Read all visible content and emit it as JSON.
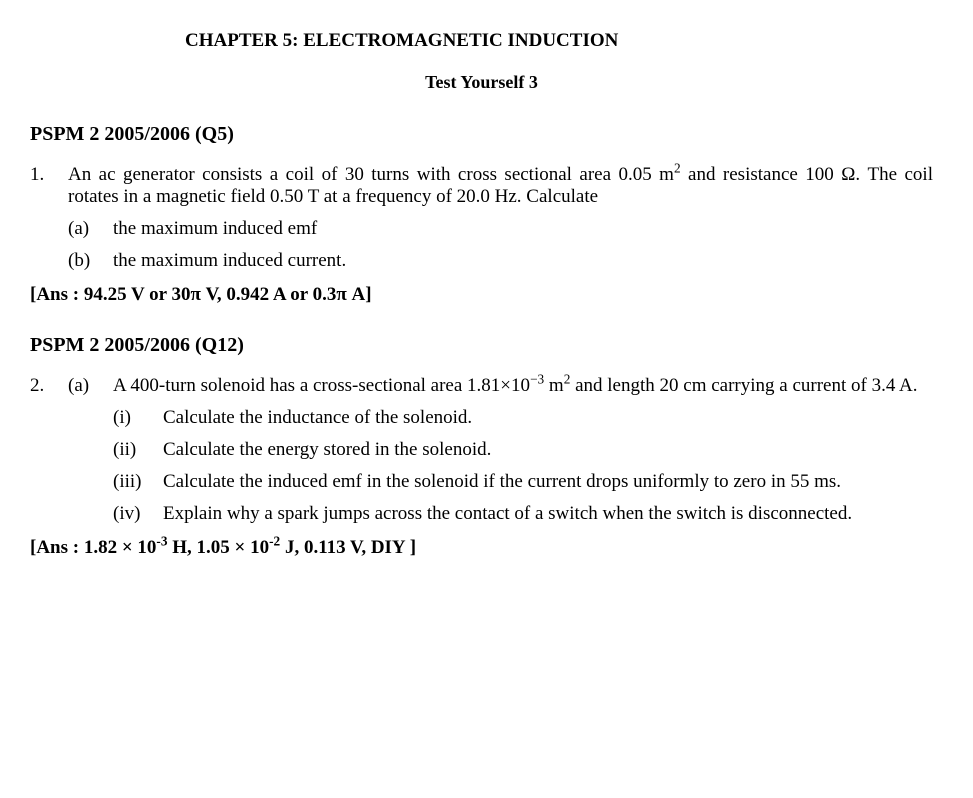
{
  "header": {
    "chapter": "CHAPTER 5: ELECTROMAGNETIC INDUCTION",
    "subtitle": "Test Yourself 3"
  },
  "sections": [
    {
      "ref": "PSPM 2 2005/2006 (Q5)",
      "num": "1.",
      "intro_html": "An ac generator consists a coil of 30 turns with cross sectional area 0.05 m<sup>2</sup> and resistance 100 Ω. The coil rotates in a magnetic field 0.50 T at a frequency of 20.0 Hz. Calculate",
      "subs": [
        {
          "label": "(a)",
          "text": "the maximum induced emf"
        },
        {
          "label": "(b)",
          "text": "the maximum induced current."
        }
      ],
      "answer": "[Ans : 94.25 V or 30π V, 0.942 A or 0.3π A]"
    },
    {
      "ref": "PSPM 2 2005/2006 (Q12)",
      "num": "2.",
      "subs": [
        {
          "label": "(a)",
          "text_html": "A 400-turn solenoid has a cross-sectional area 1.81×10<sup>−3</sup> m<sup>2</sup> and length 20 cm carrying a current of 3.4 A.",
          "romans": [
            {
              "label": "(i)",
              "text": "Calculate the inductance of the solenoid."
            },
            {
              "label": "(ii)",
              "text": "Calculate the energy stored in the solenoid."
            },
            {
              "label": "(iii)",
              "text": "Calculate the induced emf in the solenoid if the current drops uniformly to zero in 55 ms."
            },
            {
              "label": "(iv)",
              "text": "Explain why a spark jumps across the contact of a switch when the switch is disconnected."
            }
          ]
        }
      ],
      "answer_html": "[Ans : 1.82 × 10<sup>-3</sup> H, 1.05 × 10<sup>-2</sup> J, 0.113 V, DIY ]"
    }
  ]
}
